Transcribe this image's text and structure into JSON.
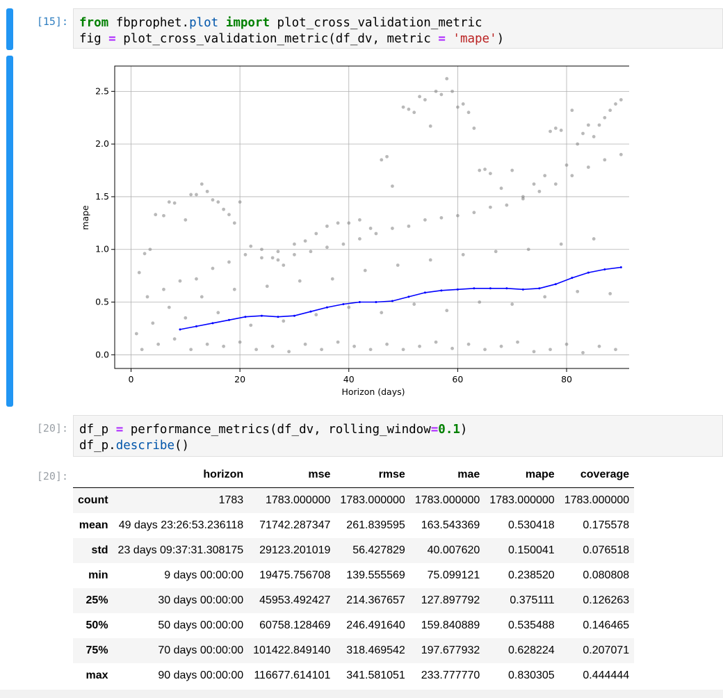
{
  "cell15": {
    "prompt": "[15]:",
    "line1": {
      "kw_from": "from",
      "module": "fbprophet",
      "dot": ".",
      "sub": "plot",
      "kw_import": "import",
      "name": "plot_cross_validation_metric"
    },
    "line2": {
      "var": "fig",
      "eq": "=",
      "call": "plot_cross_validation_metric(df_dv, metric",
      "eq2": "=",
      "str": "'mape'",
      "close": ")"
    }
  },
  "cell20": {
    "prompt": "[20]:",
    "out_prompt": "[20]:",
    "line1": {
      "pre": "df_p ",
      "eq": "=",
      "call": " performance_metrics(df_dv, rolling_window",
      "eq2": "=",
      "num": "0.1",
      "close": ")"
    },
    "line2": {
      "pre": "df_p.",
      "attr": "describe",
      "close": "()"
    }
  },
  "chart_data": {
    "type": "scatter",
    "title": "",
    "xlabel": "Horizon (days)",
    "ylabel": "mape",
    "xlim": [
      -3,
      92
    ],
    "ylim": [
      -0.13,
      2.74
    ],
    "xticks": [
      0,
      20,
      40,
      60,
      80
    ],
    "yticks": [
      0.0,
      0.5,
      1.0,
      1.5,
      2.0,
      2.5
    ],
    "xtick_labels": [
      "0",
      "20",
      "40",
      "60",
      "80"
    ],
    "ytick_labels": [
      "0.0",
      "0.5",
      "1.0",
      "1.5",
      "2.0",
      "2.5"
    ],
    "grid": true,
    "scatter_color": "#808080",
    "line_color": "#0000ff",
    "series": [
      {
        "type": "line",
        "x": [
          9,
          12,
          15,
          18,
          21,
          24,
          27,
          30,
          33,
          36,
          39,
          42,
          45,
          48,
          51,
          54,
          57,
          60,
          63,
          66,
          69,
          72,
          75,
          78,
          81,
          84,
          87,
          90
        ],
        "y": [
          0.24,
          0.27,
          0.3,
          0.33,
          0.36,
          0.37,
          0.36,
          0.37,
          0.41,
          0.45,
          0.48,
          0.5,
          0.5,
          0.51,
          0.55,
          0.59,
          0.61,
          0.62,
          0.63,
          0.63,
          0.63,
          0.62,
          0.63,
          0.67,
          0.73,
          0.78,
          0.81,
          0.83
        ]
      },
      {
        "type": "scatter",
        "x": [
          1.5,
          2.5,
          3.5,
          4.5,
          6,
          7,
          8,
          10,
          11,
          12,
          13,
          14,
          15,
          16,
          17,
          18,
          19,
          20,
          22,
          24,
          26,
          27,
          28,
          30,
          32,
          34,
          36,
          38,
          40,
          42,
          44,
          46,
          47,
          48,
          50,
          51,
          52,
          53,
          54,
          55,
          56,
          57,
          58,
          59,
          60,
          61,
          62,
          63,
          64,
          65,
          66,
          68,
          70,
          72,
          74,
          76,
          77,
          78,
          79,
          80,
          81,
          82,
          83,
          84,
          85,
          86,
          87,
          88,
          89,
          90,
          3,
          6,
          9,
          12,
          15,
          18,
          21,
          24,
          27,
          30,
          33,
          36,
          39,
          42,
          45,
          48,
          51,
          54,
          57,
          60,
          63,
          66,
          69,
          72,
          75,
          78,
          81,
          84,
          87,
          90,
          2,
          5,
          8,
          11,
          14,
          17,
          20,
          23,
          26,
          29,
          32,
          35,
          38,
          41,
          44,
          47,
          50,
          53,
          56,
          59,
          62,
          65,
          68,
          71,
          74,
          77,
          80,
          83,
          86,
          89,
          4,
          10,
          16,
          22,
          28,
          34,
          40,
          46,
          52,
          58,
          64,
          70,
          76,
          82,
          88,
          1,
          7,
          13,
          19,
          25,
          31,
          37,
          43,
          49,
          55,
          61,
          67,
          73,
          79,
          85
        ],
        "y": [
          0.78,
          0.96,
          1.0,
          1.33,
          1.32,
          1.45,
          1.44,
          1.28,
          1.52,
          1.52,
          1.62,
          1.55,
          1.47,
          1.45,
          1.38,
          1.33,
          1.25,
          1.45,
          1.03,
          1.0,
          0.92,
          0.98,
          0.85,
          1.05,
          1.08,
          1.15,
          1.22,
          1.25,
          1.25,
          1.28,
          1.2,
          1.85,
          1.88,
          1.6,
          2.35,
          2.33,
          2.3,
          2.45,
          2.42,
          2.17,
          2.5,
          2.47,
          2.62,
          2.5,
          2.35,
          2.38,
          2.3,
          2.15,
          1.75,
          1.76,
          1.72,
          1.58,
          1.75,
          1.5,
          1.62,
          1.7,
          2.12,
          2.15,
          2.13,
          1.8,
          2.32,
          2.0,
          2.1,
          2.18,
          2.07,
          2.18,
          2.25,
          2.32,
          2.38,
          2.42,
          0.55,
          0.62,
          0.7,
          0.72,
          0.82,
          0.88,
          0.95,
          0.92,
          0.9,
          0.95,
          0.98,
          1.02,
          1.05,
          1.1,
          1.15,
          1.2,
          1.22,
          1.28,
          1.3,
          1.32,
          1.35,
          1.4,
          1.42,
          1.48,
          1.55,
          1.62,
          1.7,
          1.78,
          1.85,
          1.9,
          0.05,
          0.1,
          0.15,
          0.05,
          0.1,
          0.08,
          0.12,
          0.05,
          0.08,
          0.03,
          0.1,
          0.05,
          0.12,
          0.08,
          0.05,
          0.1,
          0.05,
          0.08,
          0.12,
          0.06,
          0.1,
          0.05,
          0.08,
          0.12,
          0.03,
          0.05,
          0.1,
          0.02,
          0.08,
          0.05,
          0.3,
          0.35,
          0.4,
          0.28,
          0.32,
          0.38,
          0.45,
          0.4,
          0.48,
          0.42,
          0.5,
          0.48,
          0.55,
          0.6,
          0.58,
          0.2,
          0.45,
          0.55,
          0.62,
          0.65,
          0.7,
          0.72,
          0.8,
          0.85,
          0.9,
          0.95,
          0.98,
          1.0,
          1.05,
          1.1
        ]
      }
    ]
  },
  "table": {
    "columns": [
      "",
      "horizon",
      "mse",
      "rmse",
      "mae",
      "mape",
      "coverage"
    ],
    "rows": [
      [
        "count",
        "1783",
        "1783.000000",
        "1783.000000",
        "1783.000000",
        "1783.000000",
        "1783.000000"
      ],
      [
        "mean",
        "49 days 23:26:53.236118",
        "71742.287347",
        "261.839595",
        "163.543369",
        "0.530418",
        "0.175578"
      ],
      [
        "std",
        "23 days 09:37:31.308175",
        "29123.201019",
        "56.427829",
        "40.007620",
        "0.150041",
        "0.076518"
      ],
      [
        "min",
        "9 days 00:00:00",
        "19475.756708",
        "139.555569",
        "75.099121",
        "0.238520",
        "0.080808"
      ],
      [
        "25%",
        "30 days 00:00:00",
        "45953.492427",
        "214.367657",
        "127.897792",
        "0.375111",
        "0.126263"
      ],
      [
        "50%",
        "50 days 00:00:00",
        "60758.128469",
        "246.491640",
        "159.840889",
        "0.535488",
        "0.146465"
      ],
      [
        "75%",
        "70 days 00:00:00",
        "101422.849140",
        "318.469542",
        "197.677932",
        "0.628224",
        "0.207071"
      ],
      [
        "max",
        "90 days 00:00:00",
        "116677.614101",
        "341.581051",
        "233.777770",
        "0.830305",
        "0.444444"
      ]
    ]
  }
}
